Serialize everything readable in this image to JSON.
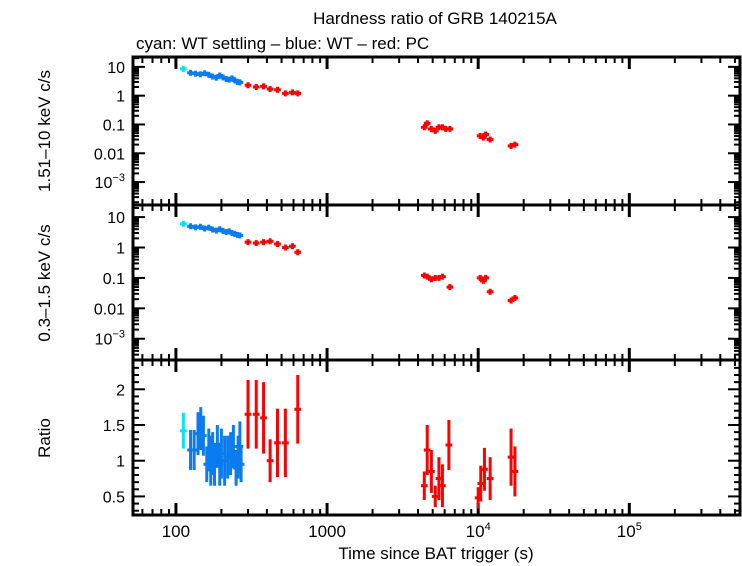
{
  "chart_data": {
    "type": "scatter",
    "title": "Hardness ratio of GRB 140215A",
    "subtitle": "cyan: WT settling – blue: WT – red: PC",
    "xlabel": "Time since BAT trigger (s)",
    "x_scale": "log",
    "xlim": [
      52,
      540000
    ],
    "x_ticks": [
      {
        "value": 100,
        "label": "100"
      },
      {
        "value": 1000,
        "label": "1000"
      },
      {
        "value": 10000,
        "label": "10",
        "exp": "4"
      },
      {
        "value": 100000,
        "label": "10",
        "exp": "5"
      }
    ],
    "colors": {
      "WT settling": "#00e5ff",
      "WT": "#0a7cf0",
      "PC": "#ff0000"
    },
    "panels": [
      {
        "ylabel": "1.51–10 keV c/s",
        "y_scale": "log",
        "ylim": [
          0.00016,
          22
        ],
        "y_ticks": [
          {
            "value": 10,
            "label": "10"
          },
          {
            "value": 1,
            "label": "1"
          },
          {
            "value": 0.1,
            "label": "0.1"
          },
          {
            "value": 0.01,
            "label": "0.01"
          },
          {
            "value": 0.001,
            "label": "10",
            "exp": "−3"
          }
        ],
        "series": [
          {
            "name": "WT settling",
            "points": [
              [
                112,
                8.5
              ]
            ]
          },
          {
            "name": "WT",
            "points": [
              [
                125,
                6.2
              ],
              [
                135,
                5.8
              ],
              [
                145,
                5.5
              ],
              [
                155,
                6.0
              ],
              [
                165,
                5.3
              ],
              [
                175,
                4.6
              ],
              [
                185,
                4.2
              ],
              [
                195,
                5.0
              ],
              [
                205,
                4.3
              ],
              [
                215,
                3.8
              ],
              [
                225,
                3.6
              ],
              [
                235,
                4.0
              ],
              [
                245,
                3.4
              ],
              [
                255,
                3.0
              ],
              [
                265,
                2.9
              ]
            ]
          },
          {
            "name": "PC",
            "points": [
              [
                300,
                2.3
              ],
              [
                340,
                2.0
              ],
              [
                380,
                2.1
              ],
              [
                420,
                1.7
              ],
              [
                470,
                1.6
              ],
              [
                530,
                1.2
              ],
              [
                590,
                1.3
              ],
              [
                640,
                1.2
              ],
              [
                4400,
                0.08
              ],
              [
                4600,
                0.11
              ],
              [
                4900,
                0.07
              ],
              [
                5200,
                0.06
              ],
              [
                5500,
                0.08
              ],
              [
                5800,
                0.08
              ],
              [
                6100,
                0.07
              ],
              [
                6500,
                0.07
              ],
              [
                10300,
                0.04
              ],
              [
                10800,
                0.035
              ],
              [
                11200,
                0.045
              ],
              [
                12000,
                0.03
              ],
              [
                16500,
                0.018
              ],
              [
                17500,
                0.02
              ]
            ]
          }
        ]
      },
      {
        "ylabel": "0.3–1.5 keV c/s",
        "y_scale": "log",
        "ylim": [
          0.0002,
          25
        ],
        "y_ticks": [
          {
            "value": 10,
            "label": "10"
          },
          {
            "value": 1,
            "label": "1"
          },
          {
            "value": 0.1,
            "label": "0.1"
          },
          {
            "value": 0.01,
            "label": "0.01"
          },
          {
            "value": 0.001,
            "label": "10",
            "exp": "−3"
          }
        ],
        "series": [
          {
            "name": "WT settling",
            "points": [
              [
                112,
                6.0
              ]
            ]
          },
          {
            "name": "WT",
            "points": [
              [
                125,
                5.0
              ],
              [
                135,
                4.6
              ],
              [
                145,
                4.8
              ],
              [
                155,
                4.2
              ],
              [
                165,
                4.5
              ],
              [
                175,
                3.9
              ],
              [
                185,
                3.6
              ],
              [
                195,
                4.0
              ],
              [
                205,
                3.5
              ],
              [
                215,
                3.2
              ],
              [
                225,
                3.4
              ],
              [
                235,
                3.0
              ],
              [
                245,
                2.8
              ],
              [
                255,
                2.6
              ],
              [
                265,
                2.5
              ]
            ]
          },
          {
            "name": "PC",
            "points": [
              [
                300,
                1.5
              ],
              [
                340,
                1.4
              ],
              [
                380,
                1.5
              ],
              [
                420,
                1.6
              ],
              [
                470,
                1.3
              ],
              [
                530,
                1.0
              ],
              [
                590,
                1.1
              ],
              [
                640,
                0.7
              ],
              [
                4400,
                0.12
              ],
              [
                4600,
                0.11
              ],
              [
                4900,
                0.09
              ],
              [
                5200,
                0.1
              ],
              [
                5500,
                0.1
              ],
              [
                5800,
                0.11
              ],
              [
                6500,
                0.05
              ],
              [
                10300,
                0.1
              ],
              [
                10800,
                0.08
              ],
              [
                11200,
                0.1
              ],
              [
                12000,
                0.035
              ],
              [
                16500,
                0.018
              ],
              [
                17500,
                0.022
              ]
            ]
          }
        ]
      },
      {
        "ylabel": "Ratio",
        "y_scale": "linear",
        "ylim": [
          0.24,
          2.41
        ],
        "y_ticks": [
          {
            "value": 2,
            "label": "2"
          },
          {
            "value": 1.5,
            "label": "1.5"
          },
          {
            "value": 1,
            "label": "1"
          },
          {
            "value": 0.5,
            "label": "0.5"
          }
        ],
        "series": [
          {
            "name": "WT settling",
            "points": [
              [
                112,
                1.42,
                0.25
              ]
            ]
          },
          {
            "name": "WT",
            "points": [
              [
                125,
                1.15,
                0.28
              ],
              [
                132,
                1.15,
                0.28
              ],
              [
                140,
                1.38,
                0.3
              ],
              [
                146,
                1.45,
                0.3
              ],
              [
                152,
                1.35,
                0.28
              ],
              [
                160,
                0.95,
                0.25
              ],
              [
                165,
                1.15,
                0.3
              ],
              [
                170,
                1.0,
                0.35
              ],
              [
                175,
                1.1,
                0.3
              ],
              [
                180,
                0.95,
                0.3
              ],
              [
                188,
                1.2,
                0.3
              ],
              [
                195,
                0.95,
                0.3
              ],
              [
                200,
                1.1,
                0.35
              ],
              [
                210,
                1.0,
                0.35
              ],
              [
                220,
                1.05,
                0.3
              ],
              [
                230,
                1.1,
                0.3
              ],
              [
                240,
                1.2,
                0.3
              ],
              [
                250,
                0.9,
                0.25
              ],
              [
                258,
                1.05,
                0.3
              ],
              [
                265,
                1.2,
                0.35
              ],
              [
                270,
                0.95,
                0.25
              ]
            ]
          },
          {
            "name": "PC",
            "points": [
              [
                300,
                1.65,
                0.48
              ],
              [
                340,
                1.65,
                0.48
              ],
              [
                380,
                1.6,
                0.5
              ],
              [
                420,
                1.0,
                0.3
              ],
              [
                470,
                1.25,
                0.48
              ],
              [
                530,
                1.25,
                0.48
              ],
              [
                640,
                1.72,
                0.48
              ],
              [
                4400,
                0.65,
                0.2
              ],
              [
                4600,
                1.15,
                0.35
              ],
              [
                4900,
                0.85,
                0.3
              ],
              [
                5200,
                0.5,
                0.15
              ],
              [
                5500,
                0.75,
                0.3
              ],
              [
                5800,
                0.65,
                0.3
              ],
              [
                6400,
                1.22,
                0.35
              ],
              [
                10000,
                0.48,
                0.15
              ],
              [
                10400,
                0.68,
                0.25
              ],
              [
                11000,
                0.88,
                0.3
              ],
              [
                12000,
                0.75,
                0.3
              ],
              [
                16500,
                1.05,
                0.4
              ],
              [
                17500,
                0.85,
                0.35
              ]
            ]
          }
        ]
      }
    ]
  }
}
